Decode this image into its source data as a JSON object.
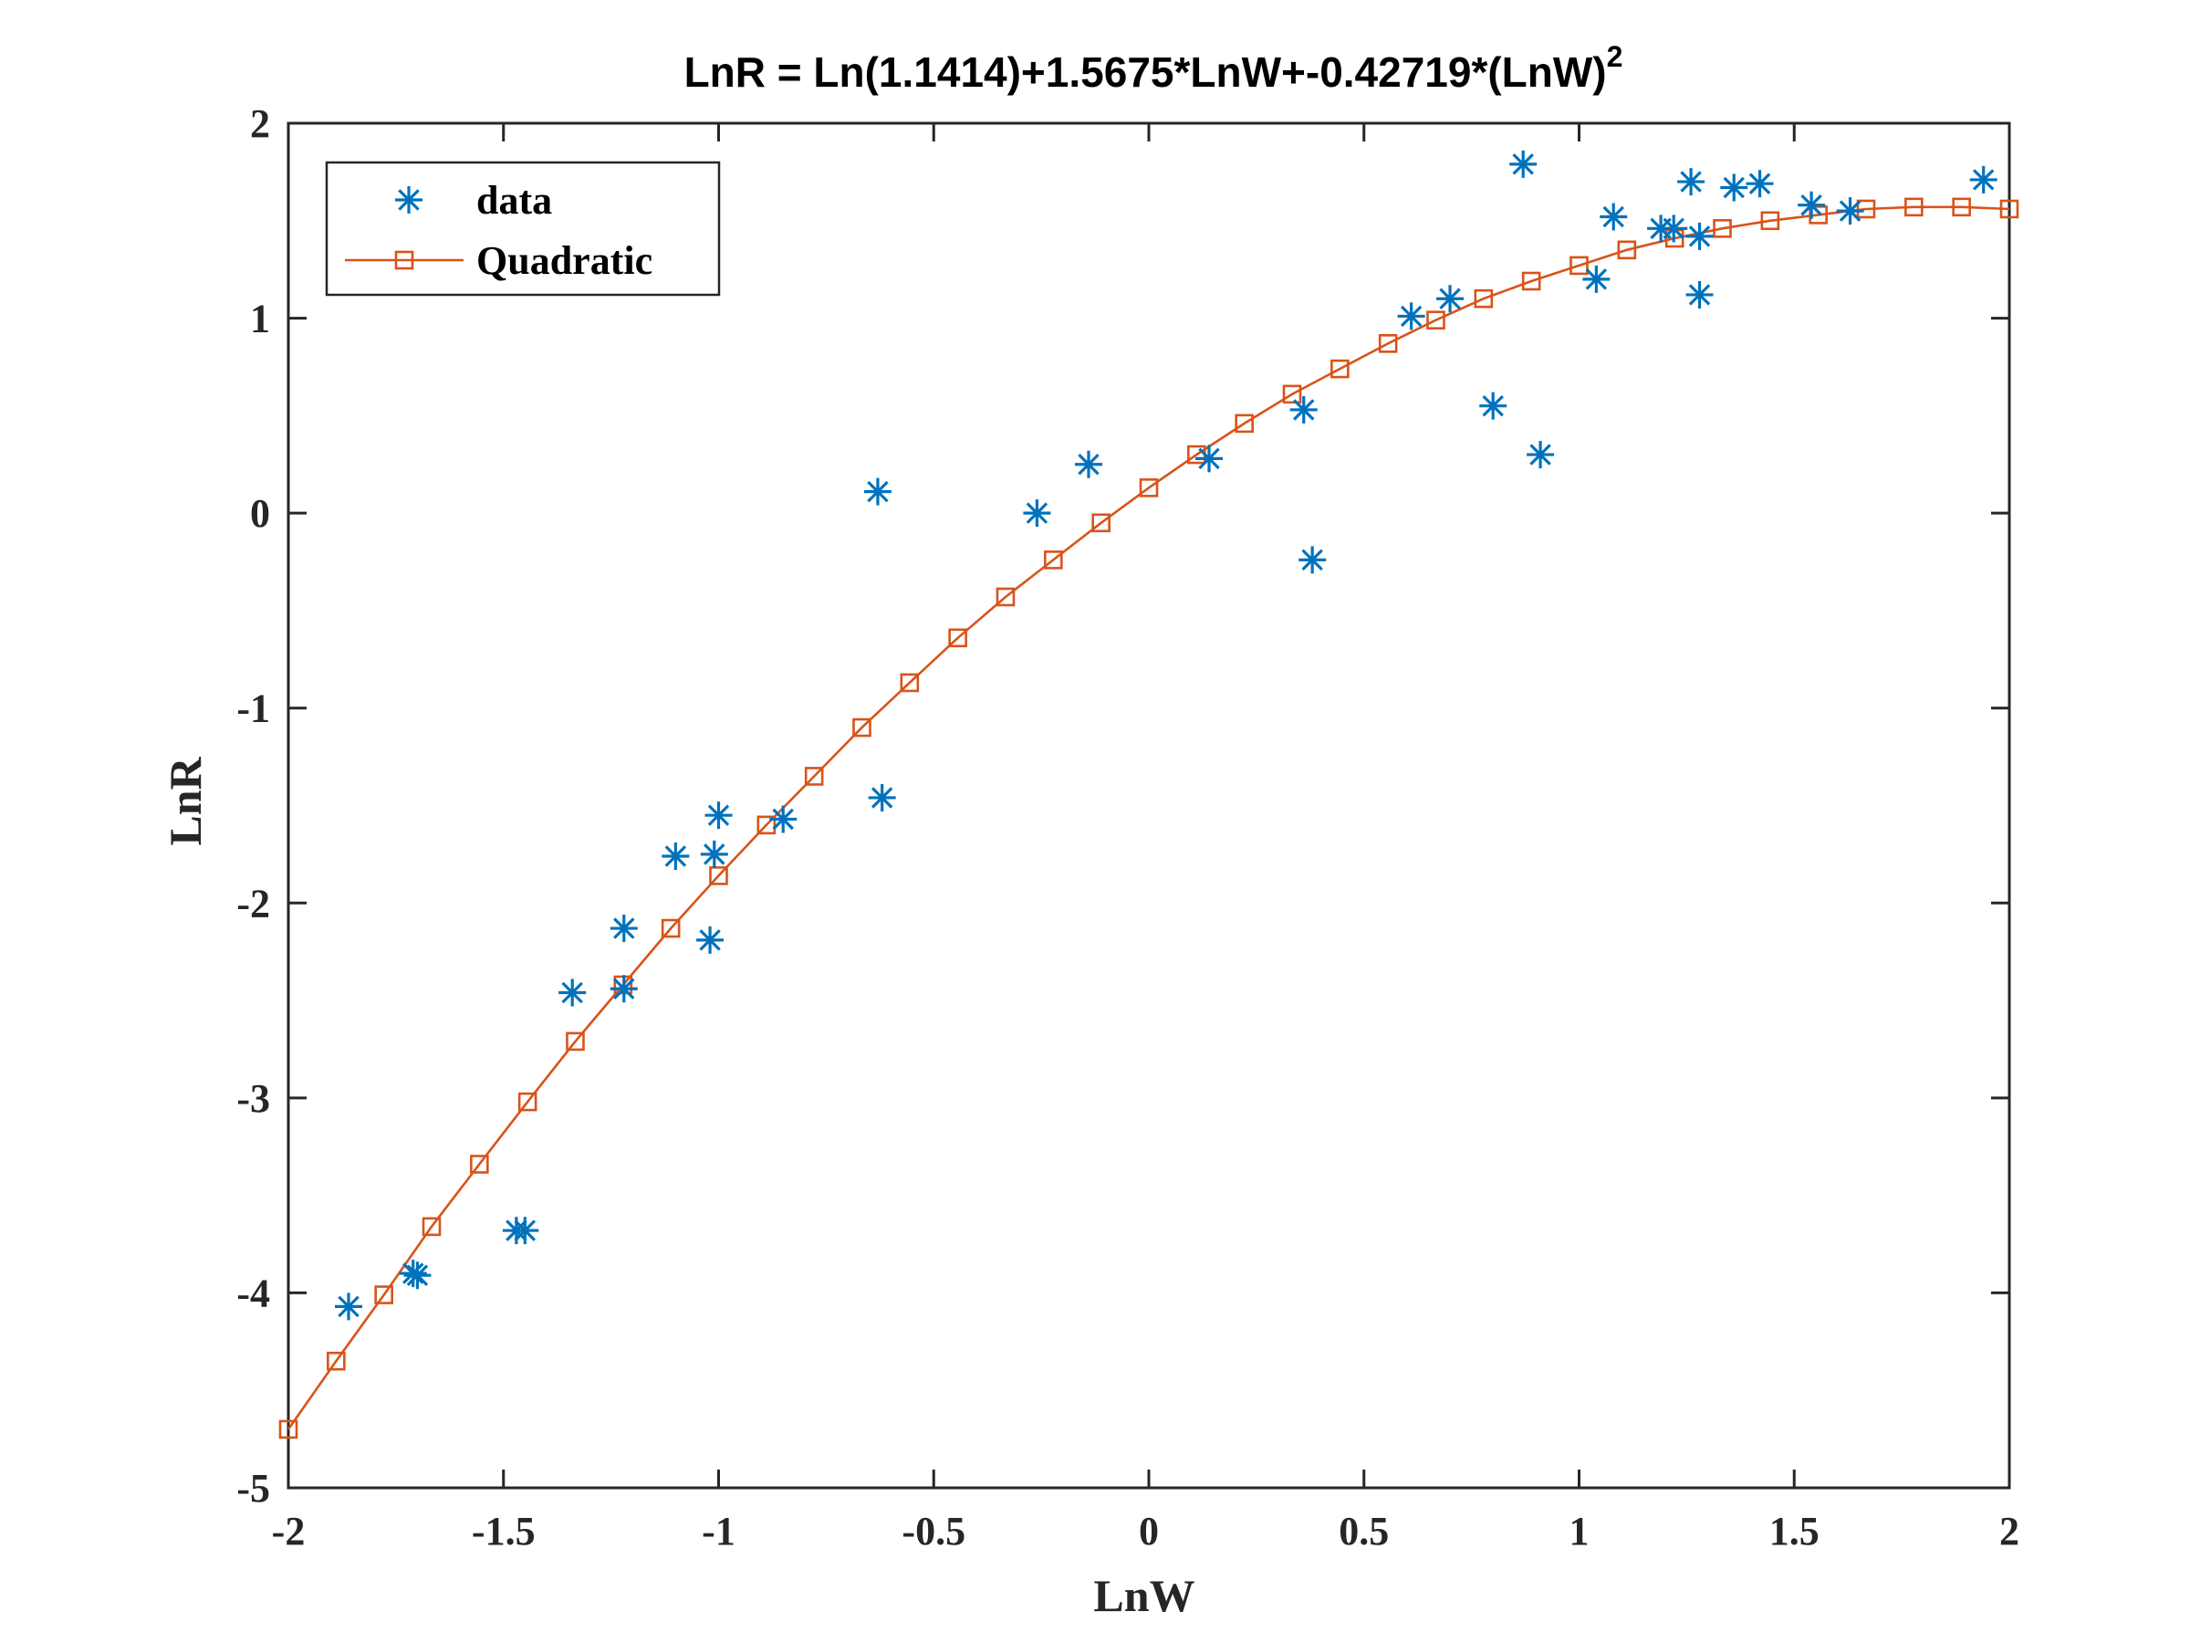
{
  "chart_data": {
    "type": "scatter",
    "title": "LnR = Ln(1.1414)+1.5675*LnW+-0.42719*(LnW)",
    "title_superscript": "2",
    "xlabel": "LnW",
    "ylabel": "LnR",
    "xlim": [
      -2,
      2
    ],
    "ylim": [
      -5,
      2
    ],
    "xticks": [
      -2,
      -1.5,
      -1,
      -0.5,
      0,
      0.5,
      1,
      1.5,
      2
    ],
    "xtick_labels": [
      "-2",
      "-1.5",
      "-1",
      "-0.5",
      "0",
      "0.5",
      "1",
      "1.5",
      "2"
    ],
    "yticks": [
      -5,
      -4,
      -3,
      -2,
      -1,
      0,
      1,
      2
    ],
    "ytick_labels": [
      "-5",
      "-4",
      "-3",
      "-2",
      "-1",
      "0",
      "1",
      "2"
    ],
    "grid": false,
    "legend_position": "top-left",
    "series": [
      {
        "name": "data",
        "kind": "scatter",
        "marker": "asterisk",
        "color": "#0072BD",
        "points": [
          [
            -1.86,
            -4.07
          ],
          [
            -1.71,
            -3.9
          ],
          [
            -1.7,
            -3.91
          ],
          [
            -1.47,
            -3.68
          ],
          [
            -1.45,
            -3.68
          ],
          [
            -1.34,
            -2.46
          ],
          [
            -1.22,
            -2.13
          ],
          [
            -1.22,
            -2.44
          ],
          [
            -1.1,
            -1.76
          ],
          [
            -1.02,
            -2.19
          ],
          [
            -1.01,
            -1.75
          ],
          [
            -1.0,
            -1.55
          ],
          [
            -0.85,
            -1.57
          ],
          [
            -0.63,
            0.11
          ],
          [
            -0.62,
            -1.46
          ],
          [
            -0.26,
            0.0
          ],
          [
            -0.14,
            0.25
          ],
          [
            0.14,
            0.28
          ],
          [
            0.36,
            0.53
          ],
          [
            0.38,
            -0.24
          ],
          [
            0.61,
            1.01
          ],
          [
            0.7,
            1.1
          ],
          [
            0.8,
            0.55
          ],
          [
            0.87,
            1.79
          ],
          [
            0.91,
            0.3
          ],
          [
            1.04,
            1.2
          ],
          [
            1.08,
            1.52
          ],
          [
            1.19,
            1.46
          ],
          [
            1.22,
            1.46
          ],
          [
            1.26,
            1.7
          ],
          [
            1.28,
            1.42
          ],
          [
            1.28,
            1.12
          ],
          [
            1.36,
            1.67
          ],
          [
            1.42,
            1.69
          ],
          [
            1.54,
            1.58
          ],
          [
            1.63,
            1.55
          ],
          [
            1.94,
            1.71
          ]
        ]
      },
      {
        "name": "Quadratic",
        "kind": "line",
        "marker": "square",
        "color": "#D95319",
        "points": [
          [
            -2.0,
            -4.7
          ],
          [
            -1.889,
            -4.35
          ],
          [
            -1.778,
            -4.01
          ],
          [
            -1.667,
            -3.66
          ],
          [
            -1.556,
            -3.34
          ],
          [
            -1.444,
            -3.02
          ],
          [
            -1.333,
            -2.71
          ],
          [
            -1.222,
            -2.42
          ],
          [
            -1.111,
            -2.13
          ],
          [
            -1.0,
            -1.86
          ],
          [
            -0.889,
            -1.6
          ],
          [
            -0.778,
            -1.35
          ],
          [
            -0.667,
            -1.1
          ],
          [
            -0.556,
            -0.87
          ],
          [
            -0.444,
            -0.64
          ],
          [
            -0.333,
            -0.43
          ],
          [
            -0.222,
            -0.24
          ],
          [
            -0.111,
            -0.05
          ],
          [
            0.0,
            0.13
          ],
          [
            0.111,
            0.3
          ],
          [
            0.222,
            0.46
          ],
          [
            0.333,
            0.61
          ],
          [
            0.444,
            0.74
          ],
          [
            0.556,
            0.87
          ],
          [
            0.667,
            0.99
          ],
          [
            0.778,
            1.1
          ],
          [
            0.889,
            1.19
          ],
          [
            1.0,
            1.27
          ],
          [
            1.111,
            1.35
          ],
          [
            1.222,
            1.41
          ],
          [
            1.333,
            1.46
          ],
          [
            1.444,
            1.5
          ],
          [
            1.556,
            1.53
          ],
          [
            1.667,
            1.56
          ],
          [
            1.778,
            1.57
          ],
          [
            1.889,
            1.57
          ],
          [
            2.0,
            1.56
          ]
        ]
      }
    ]
  }
}
